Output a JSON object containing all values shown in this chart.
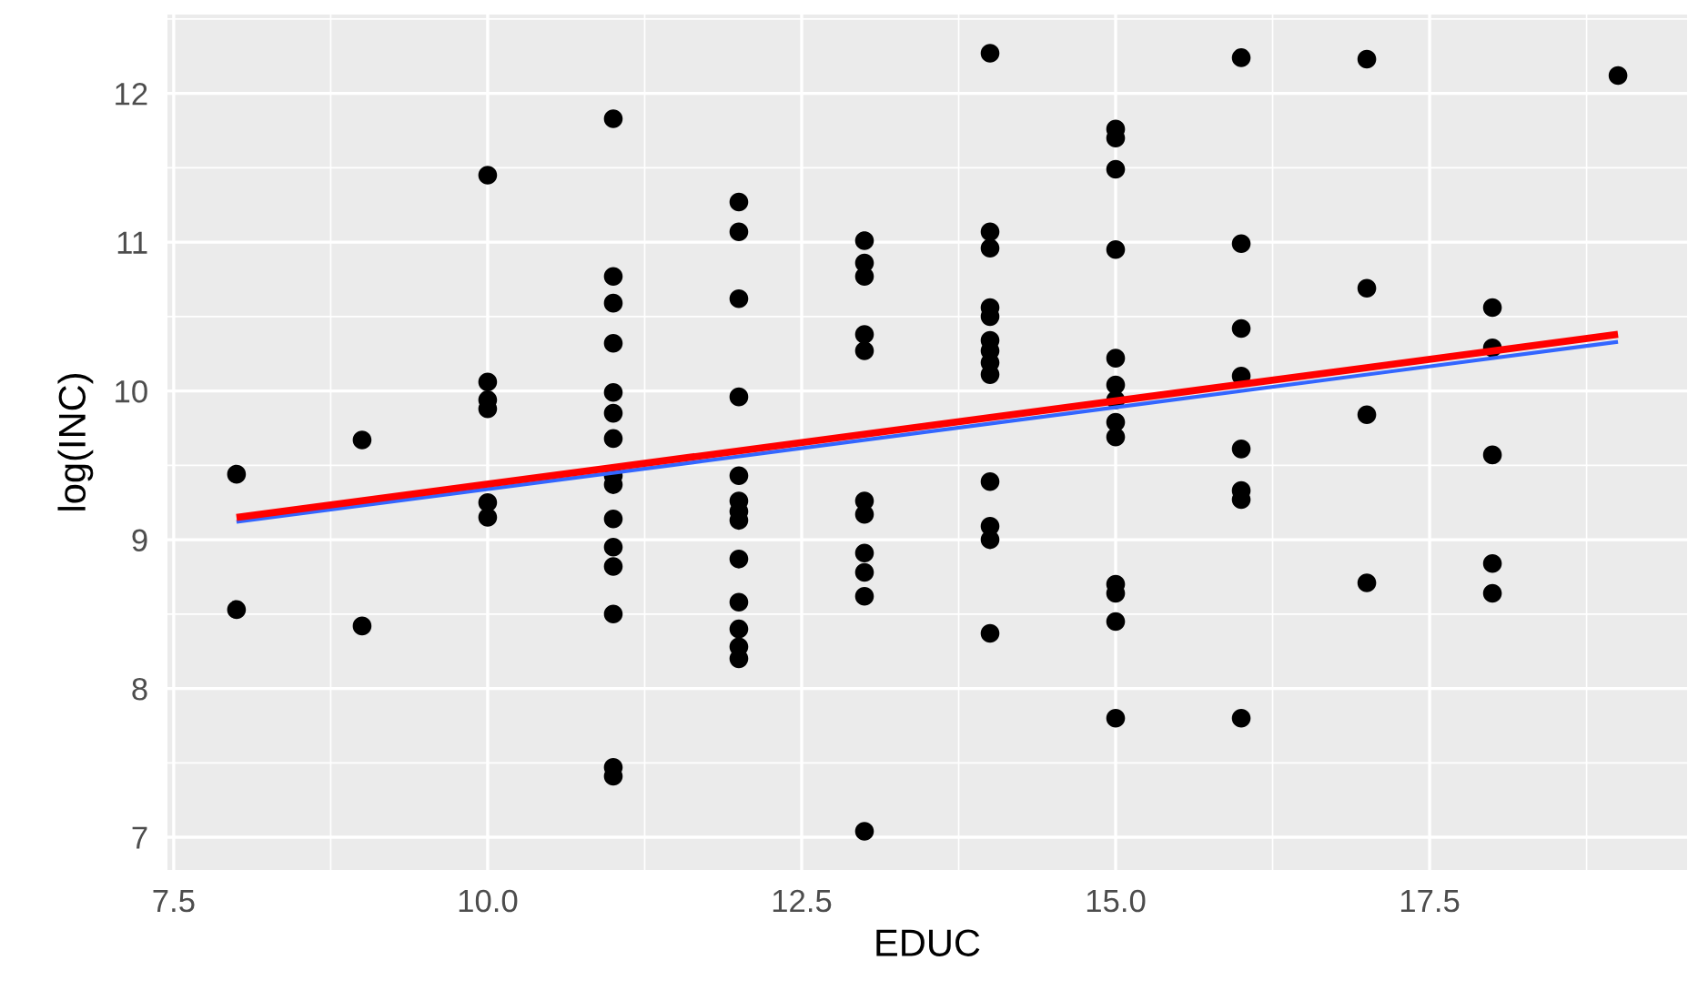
{
  "chart_data": {
    "type": "scatter",
    "xlabel": "EDUC",
    "ylabel": "log(INC)",
    "xlim": [
      7.45,
      19.55
    ],
    "ylim": [
      6.78,
      12.53
    ],
    "xticks": [
      {
        "value": 7.5,
        "label": "7.5"
      },
      {
        "value": 10,
        "label": "10.0"
      },
      {
        "value": 12.5,
        "label": "12.5"
      },
      {
        "value": 15,
        "label": "15.0"
      },
      {
        "value": 17.5,
        "label": "17.5"
      }
    ],
    "yticks": [
      7,
      8,
      9,
      10,
      11,
      12
    ],
    "grid": true,
    "series": [
      {
        "marker": "circle",
        "color": "#000000",
        "x": [
          8,
          8,
          9,
          9,
          10,
          10,
          10,
          10,
          10,
          10,
          11,
          11,
          11,
          11,
          11,
          11,
          11,
          11,
          11,
          11,
          11,
          11,
          11,
          11,
          11,
          12,
          12,
          12,
          12,
          12,
          12,
          12,
          12,
          12,
          12,
          12,
          12,
          12,
          13,
          13,
          13,
          13,
          13,
          13,
          13,
          13,
          13,
          13,
          13,
          14,
          14,
          14,
          14,
          14,
          14,
          14,
          14,
          14,
          14,
          14,
          14,
          14,
          15,
          15,
          15,
          15,
          15,
          15,
          15,
          15,
          15,
          15,
          15,
          15,
          15,
          16,
          16,
          16,
          16,
          16,
          16,
          16,
          16,
          17,
          17,
          17,
          17,
          18,
          18,
          18,
          18,
          18,
          19
        ],
        "values": [
          9.44,
          8.53,
          9.67,
          8.42,
          11.45,
          10.06,
          9.94,
          9.88,
          9.25,
          9.15,
          11.83,
          10.77,
          10.59,
          10.32,
          9.99,
          9.85,
          9.68,
          9.43,
          9.37,
          9.14,
          8.95,
          8.82,
          8.5,
          7.47,
          7.41,
          11.27,
          11.07,
          10.62,
          9.96,
          9.43,
          9.26,
          9.19,
          9.13,
          8.87,
          8.58,
          8.4,
          8.28,
          8.2,
          11.01,
          10.86,
          10.77,
          10.38,
          10.27,
          9.26,
          9.17,
          8.91,
          8.78,
          8.62,
          7.04,
          12.27,
          11.07,
          10.96,
          10.56,
          10.5,
          10.34,
          10.27,
          10.19,
          10.11,
          9.39,
          9.09,
          9.0,
          8.37,
          11.76,
          11.7,
          11.49,
          10.95,
          10.22,
          10.04,
          9.94,
          9.79,
          9.69,
          8.7,
          8.64,
          8.45,
          7.8,
          12.24,
          10.99,
          10.42,
          10.1,
          9.61,
          9.33,
          9.27,
          7.8,
          12.23,
          10.69,
          9.84,
          8.71,
          10.56,
          10.29,
          9.57,
          8.84,
          8.64,
          12.12
        ]
      },
      {
        "type": "line",
        "color": "#3366ff",
        "x": [
          8,
          19
        ],
        "values": [
          9.12,
          10.33
        ]
      },
      {
        "type": "line",
        "color": "#ff0000",
        "x": [
          8,
          19
        ],
        "values": [
          9.15,
          10.38
        ]
      }
    ]
  }
}
